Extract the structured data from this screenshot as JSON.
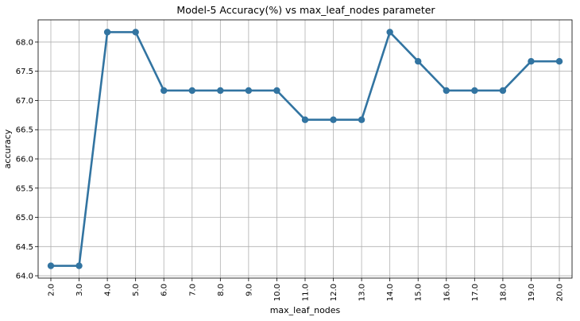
{
  "chart_data": {
    "type": "line",
    "title": "Model-5 Accuracy(%) vs max_leaf_nodes parameter",
    "xlabel": "max_leaf_nodes",
    "ylabel": "accuracy",
    "categories": [
      "2.0",
      "3.0",
      "4.0",
      "5.0",
      "6.0",
      "7.0",
      "8.0",
      "9.0",
      "10.0",
      "11.0",
      "12.0",
      "13.0",
      "14.0",
      "15.0",
      "16.0",
      "17.0",
      "18.0",
      "19.0",
      "20.0"
    ],
    "series": [
      {
        "values": [
          64.17,
          64.17,
          68.17,
          68.17,
          67.17,
          67.17,
          67.17,
          67.17,
          67.17,
          66.67,
          66.67,
          66.67,
          68.17,
          67.67,
          67.17,
          67.17,
          67.17,
          67.67,
          67.67
        ]
      }
    ],
    "yticks": [
      "64.0",
      "64.5",
      "65.0",
      "65.5",
      "66.0",
      "66.5",
      "67.0",
      "67.5",
      "68.0"
    ],
    "ylim": [
      63.96,
      68.38
    ],
    "grid": true,
    "x_tick_rotation": "vertical",
    "colors": {
      "line": "#3274a1",
      "grid": "#b0b0b0",
      "axis": "#000000"
    }
  }
}
